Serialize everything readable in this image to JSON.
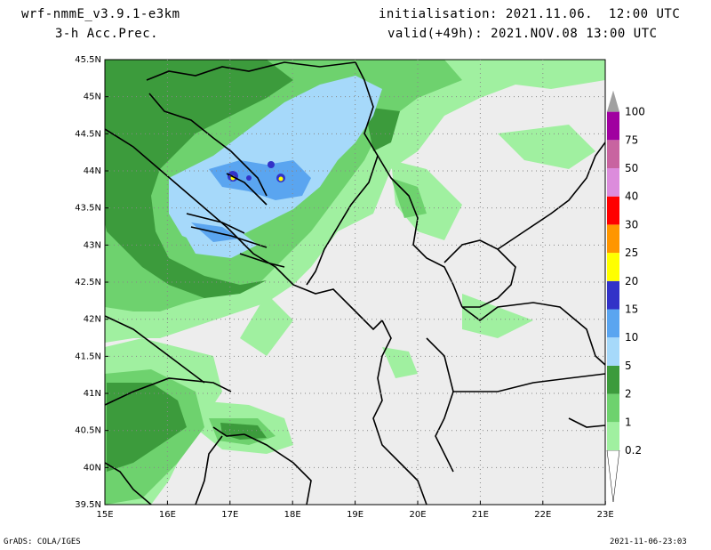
{
  "header": {
    "model": "wrf-nmmE_v3.9.1-e3km",
    "field": "3-h Acc.Prec.",
    "init": "initialisation: 2021.11.06.  12:00 UTC",
    "valid": "valid(+49h): 2021.NOV.08 13:00 UTC"
  },
  "footer": {
    "credit": "GrADS: COLA/IGES",
    "timestamp": "2021-11-06-23:03"
  },
  "axes": {
    "lon_labels": [
      "15E",
      "16E",
      "17E",
      "18E",
      "19E",
      "20E",
      "21E",
      "22E",
      "23E"
    ],
    "lat_labels": [
      "45.5N",
      "45N",
      "44.5N",
      "44N",
      "43.5N",
      "43N",
      "42.5N",
      "42N",
      "41.5N",
      "41N",
      "40.5N",
      "40N",
      "39.5N"
    ]
  },
  "legend": {
    "levels": [
      {
        "label": "0.2",
        "color": "#a0f0a0"
      },
      {
        "label": "1",
        "color": "#6ed26e"
      },
      {
        "label": "2",
        "color": "#3c9b3c"
      },
      {
        "label": "5",
        "color": "#a6d9fa"
      },
      {
        "label": "10",
        "color": "#5aa5f0"
      },
      {
        "label": "15",
        "color": "#3232c8"
      },
      {
        "label": "20",
        "color": "#ffff00"
      },
      {
        "label": "25",
        "color": "#ff9600"
      },
      {
        "label": "30",
        "color": "#ff0000"
      },
      {
        "label": "40",
        "color": "#dc8cdc"
      },
      {
        "label": "50",
        "color": "#c864a0"
      },
      {
        "label": "75",
        "color": "#a000a0"
      },
      {
        "label": "100",
        "color": "#a0a0a0"
      }
    ]
  },
  "colors": {
    "background_land": "#ededed",
    "border": "#000000"
  }
}
